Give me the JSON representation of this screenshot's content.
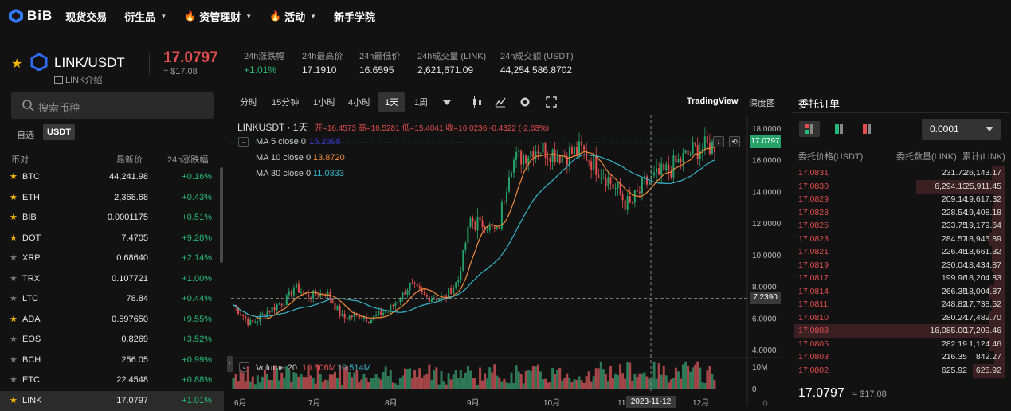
{
  "nav": {
    "logo": "BiB",
    "items": [
      {
        "label": "现货交易",
        "fire": false,
        "caret": false
      },
      {
        "label": "衍生品",
        "fire": false,
        "caret": true
      },
      {
        "label": "资管理财",
        "fire": true,
        "caret": true
      },
      {
        "label": "活动",
        "fire": true,
        "caret": true
      },
      {
        "label": "新手学院",
        "fire": false,
        "caret": false
      }
    ]
  },
  "ticker": {
    "pair": "LINK/USDT",
    "intro": "LINK介绍",
    "price": "17.0797",
    "fiat": "≈ $17.08",
    "stats": [
      {
        "label": "24h涨跌幅",
        "value": "+1.01%"
      },
      {
        "label": "24h最高价",
        "value": "17.1910"
      },
      {
        "label": "24h最低价",
        "value": "16.6595"
      },
      {
        "label": "24h成交量 (LINK)",
        "value": "2,621,671.09"
      },
      {
        "label": "24h成交额 (USDT)",
        "value": "44,254,586.8702"
      }
    ]
  },
  "market": {
    "search_placeholder": "搜索币种",
    "tab_fav": "自选",
    "tab_usdt": "USDT",
    "col_pair": "币对",
    "col_price": "最新价",
    "col_change": "24h涨跌幅",
    "rows": [
      {
        "sym": "BTC",
        "price": "44,241.98",
        "change": "+0.16%",
        "fav": true
      },
      {
        "sym": "ETH",
        "price": "2,368.68",
        "change": "+0.43%",
        "fav": true
      },
      {
        "sym": "BIB",
        "price": "0.0001175",
        "change": "+0.51%",
        "fav": true
      },
      {
        "sym": "DOT",
        "price": "7.4705",
        "change": "+9.28%",
        "fav": true
      },
      {
        "sym": "XRP",
        "price": "0.68640",
        "change": "+2.14%",
        "fav": false
      },
      {
        "sym": "TRX",
        "price": "0.107721",
        "change": "+1.00%",
        "fav": false
      },
      {
        "sym": "LTC",
        "price": "78.84",
        "change": "+0.44%",
        "fav": false
      },
      {
        "sym": "ADA",
        "price": "0.597650",
        "change": "+9.55%",
        "fav": true
      },
      {
        "sym": "EOS",
        "price": "0.8269",
        "change": "+3.52%",
        "fav": false
      },
      {
        "sym": "BCH",
        "price": "256.05",
        "change": "+0.99%",
        "fav": false
      },
      {
        "sym": "ETC",
        "price": "22.4548",
        "change": "+0.88%",
        "fav": false
      },
      {
        "sym": "LINK",
        "price": "17.0797",
        "change": "+1.01%",
        "fav": true
      }
    ]
  },
  "chart_toolbar": {
    "intervals": [
      "分时",
      "15分钟",
      "1小时",
      "4小时",
      "1天",
      "1周"
    ],
    "active": "1天",
    "tradingview": "TradingView",
    "depth": "深度图"
  },
  "chart_legend": {
    "symbol": "LINKUSDT · 1天",
    "ohlc": "开=16.4573 高=16.5281 低=15.4041 收=16.0236 -0.4322 (-2.63%)",
    "ma5": "MA 5 close 0",
    "ma5_val": "15.2698",
    "ma10": "MA 10 close 0",
    "ma10_val": "13.8720",
    "ma30": "MA 30 close 0",
    "ma30_val": "11.0333",
    "volume": "Volume 20",
    "vol_a": "10.606M",
    "vol_b": "10.514M",
    "price_tag": "17.0797",
    "cross_tag": "7.2390",
    "date_tag": "2023-11-12"
  },
  "chart_data": {
    "type": "candlestick",
    "y_ticks": [
      "18.0000",
      "16.0000",
      "14.0000",
      "12.0000",
      "10.0000",
      "8.0000",
      "6.0000",
      "4.0000"
    ],
    "x_ticks": [
      "6月",
      "7月",
      "8月",
      "9月",
      "10月",
      "11月",
      "12月"
    ],
    "vol_ticks": [
      "10M",
      "0"
    ],
    "ylim": [
      4,
      18
    ],
    "last": 17.0797
  },
  "orderbook": {
    "title": "委托订单",
    "precision": "0.0001",
    "col_price": "委托价格(USDT)",
    "col_qty": "委托数量(LINK)",
    "col_total": "累计(LINK)",
    "rows": [
      {
        "p": "17.0831",
        "q": "231.72",
        "t": "26,143.17",
        "w": 0.06
      },
      {
        "p": "17.0830",
        "q": "6,294.13",
        "t": "25,911.45",
        "w": 0.42
      },
      {
        "p": "17.0829",
        "q": "209.14",
        "t": "19,617.32",
        "w": 0.05
      },
      {
        "p": "17.0828",
        "q": "228.54",
        "t": "19,408.18",
        "w": 0.06
      },
      {
        "p": "17.0825",
        "q": "233.75",
        "t": "19,179.64",
        "w": 0.06
      },
      {
        "p": "17.0823",
        "q": "284.57",
        "t": "18,945.89",
        "w": 0.07
      },
      {
        "p": "17.0821",
        "q": "226.45",
        "t": "18,661.32",
        "w": 0.06
      },
      {
        "p": "17.0819",
        "q": "230.04",
        "t": "18,434.87",
        "w": 0.06
      },
      {
        "p": "17.0817",
        "q": "199.96",
        "t": "18,204.83",
        "w": 0.05
      },
      {
        "p": "17.0814",
        "q": "266.35",
        "t": "18,004.87",
        "w": 0.07
      },
      {
        "p": "17.0811",
        "q": "248.82",
        "t": "17,738.52",
        "w": 0.06
      },
      {
        "p": "17.0810",
        "q": "280.24",
        "t": "17,489.70",
        "w": 0.07
      },
      {
        "p": "17.0808",
        "q": "16,085.00",
        "t": "17,209.46",
        "w": 1.0
      },
      {
        "p": "17.0805",
        "q": "282.19",
        "t": "1,124.46",
        "w": 0.07
      },
      {
        "p": "17.0803",
        "q": "216.35",
        "t": "842.27",
        "w": 0.05
      },
      {
        "p": "17.0802",
        "q": "625.92",
        "t": "625.92",
        "w": 0.15
      }
    ],
    "last": "17.0797",
    "last_fiat": "≈ $17.08"
  }
}
